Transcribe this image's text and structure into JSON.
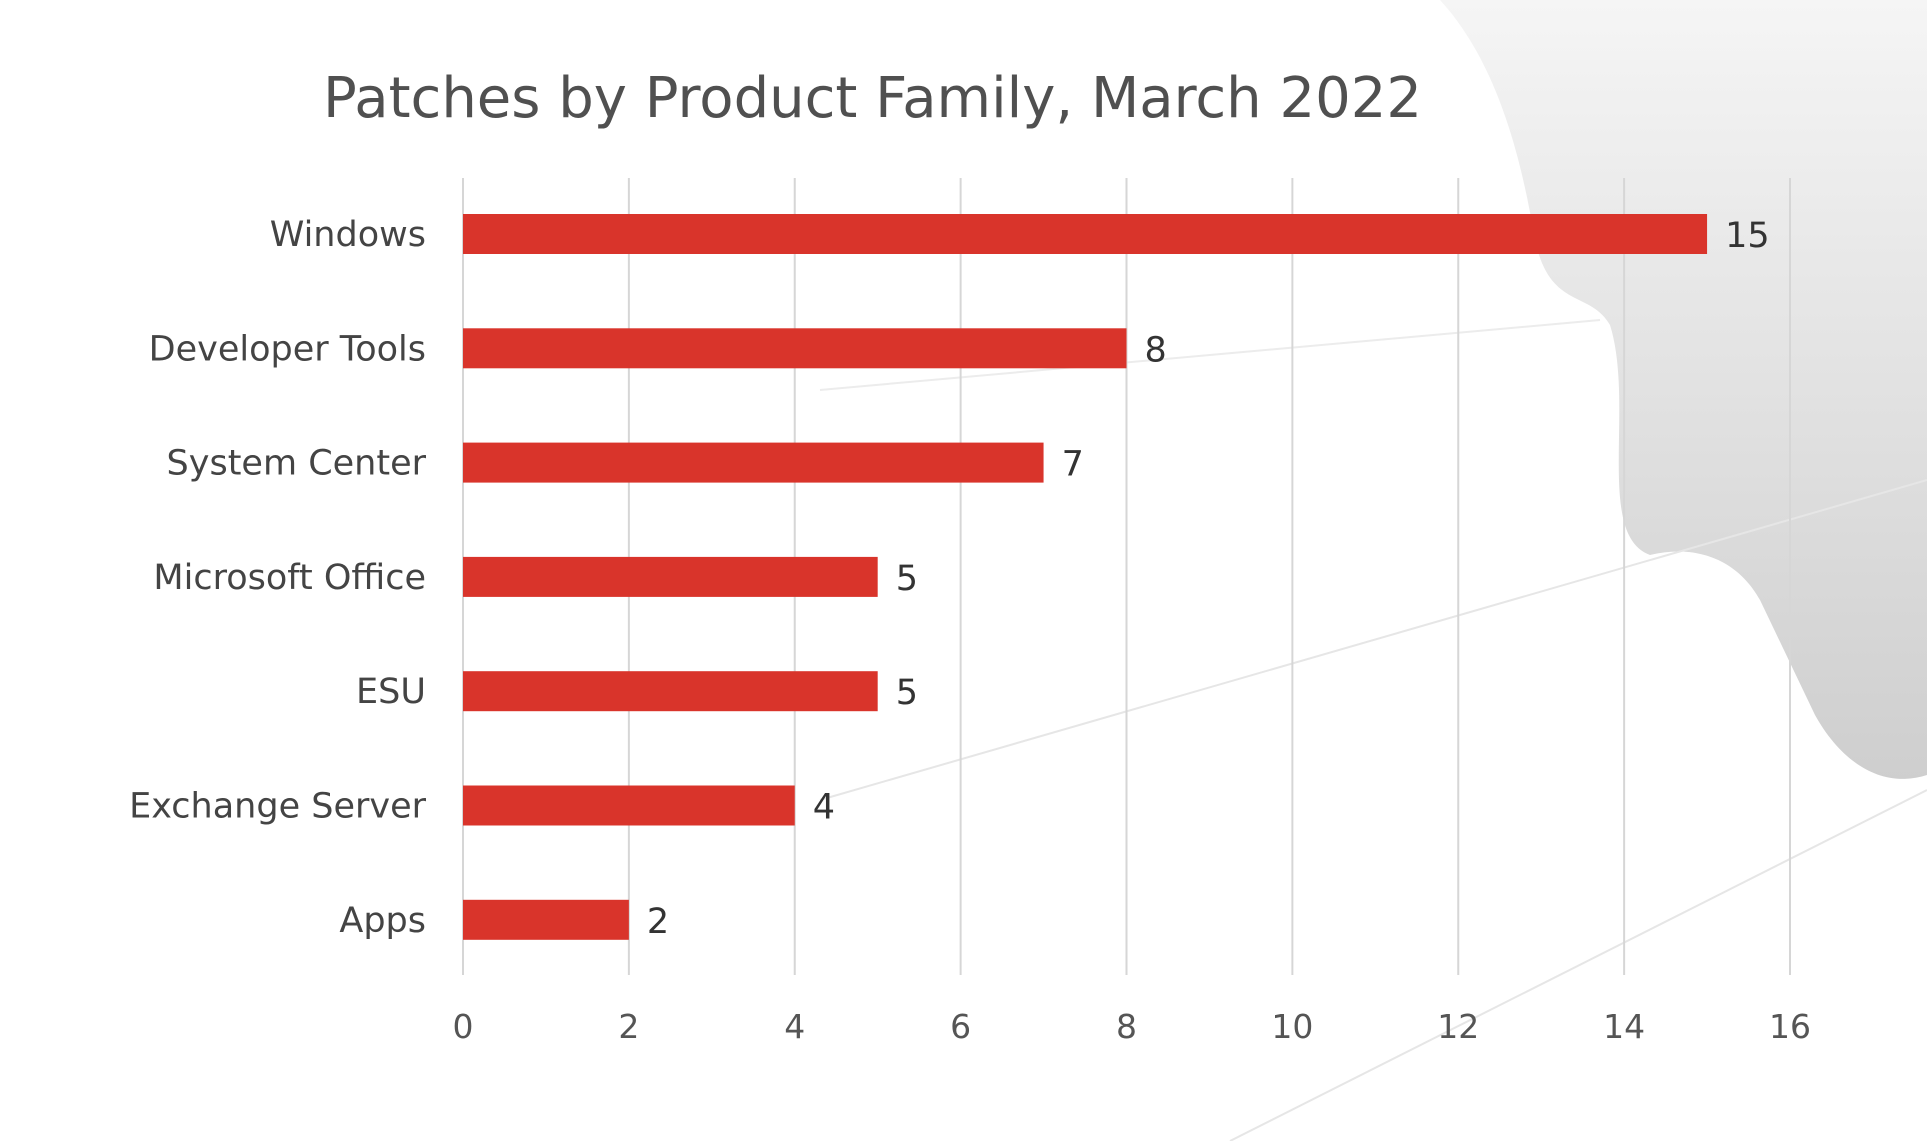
{
  "chart_data": {
    "type": "bar",
    "orientation": "horizontal",
    "title": "Patches by Product Family, March 2022",
    "categories": [
      "Windows",
      "Developer Tools",
      "System Center",
      "Microsoft Office",
      "ESU",
      "Exchange Server",
      "Apps"
    ],
    "values": [
      15,
      8,
      7,
      5,
      5,
      4,
      2
    ],
    "xlim": [
      0,
      16
    ],
    "xticks": [
      "0",
      "2",
      "4",
      "6",
      "8",
      "10",
      "12",
      "14",
      "16"
    ],
    "xlabel": "",
    "ylabel": "",
    "grid": "vertical",
    "legend": "none",
    "colors": {
      "bar": "#d9342b",
      "grid": "#d6d6d6",
      "background": "#ffffff",
      "decoration": "#cfcfcf"
    }
  }
}
